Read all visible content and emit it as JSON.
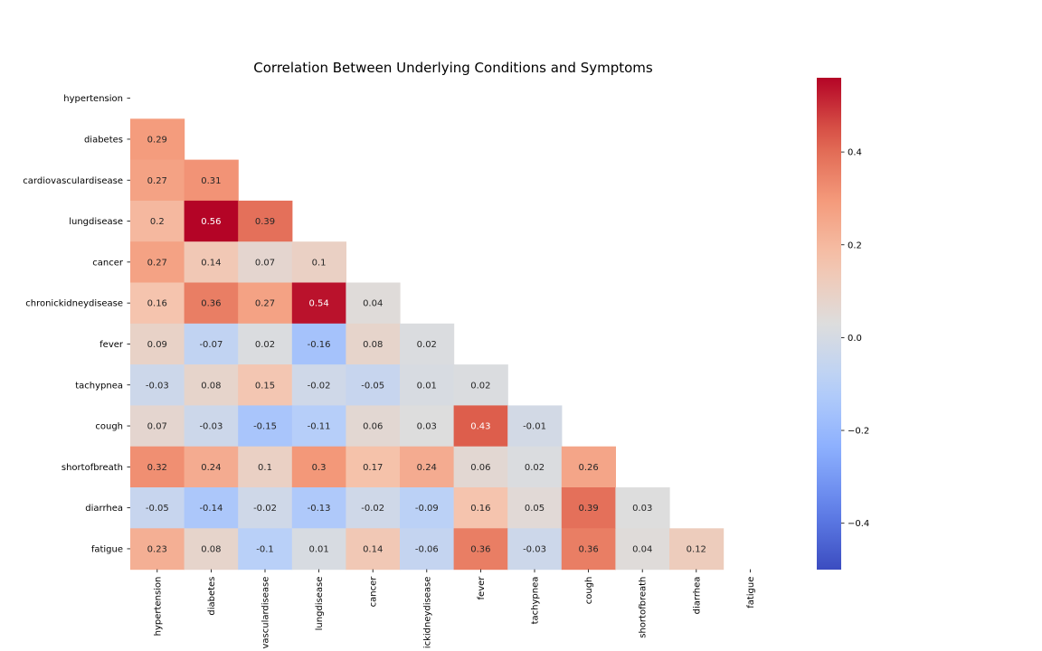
{
  "chart_data": {
    "type": "heatmap",
    "title": "Correlation Between Underlying Conditions and Symptoms",
    "variables": [
      "hypertension",
      "diabetes",
      "cardiovasculardisease",
      "lungdisease",
      "cancer",
      "chronickidneydisease",
      "fever",
      "tachypnea",
      "cough",
      "shortofbreath",
      "diarrhea",
      "fatigue"
    ],
    "x_tick_labels": [
      "hypertension",
      "diabetes",
      "vasculardisease",
      "lungdisease",
      "cancer",
      "ickidneydisease",
      "fever",
      "tachypnea",
      "cough",
      "shortofbreath",
      "diarrhea",
      "fatigue"
    ],
    "mask": "upper triangle including diagonal",
    "lower_triangle": [
      [],
      [
        0.29
      ],
      [
        0.27,
        0.31
      ],
      [
        0.2,
        0.56,
        0.39
      ],
      [
        0.27,
        0.14,
        0.07,
        0.1
      ],
      [
        0.16,
        0.36,
        0.27,
        0.54,
        0.04
      ],
      [
        0.09,
        -0.07,
        0.02,
        -0.16,
        0.08,
        0.02
      ],
      [
        -0.03,
        0.08,
        0.15,
        -0.02,
        -0.05,
        0.01,
        0.02
      ],
      [
        0.07,
        -0.03,
        -0.15,
        -0.11,
        0.06,
        0.03,
        0.43,
        -0.01
      ],
      [
        0.32,
        0.24,
        0.1,
        0.3,
        0.17,
        0.24,
        0.06,
        0.02,
        0.26
      ],
      [
        -0.05,
        -0.14,
        -0.02,
        -0.13,
        -0.02,
        -0.09,
        0.16,
        0.05,
        0.39,
        0.03
      ],
      [
        0.23,
        0.08,
        -0.1,
        0.01,
        0.14,
        -0.06,
        0.36,
        -0.03,
        0.36,
        0.04,
        0.12
      ]
    ],
    "colormap": "coolwarm",
    "vmin": -0.5,
    "vmax": 0.56,
    "colorbar_ticks": [
      -0.4,
      -0.2,
      0.0,
      0.2,
      0.4
    ],
    "colorbar_tick_labels": [
      "−0.4",
      "−0.2",
      "0.0",
      "0.2",
      "0.4"
    ]
  }
}
